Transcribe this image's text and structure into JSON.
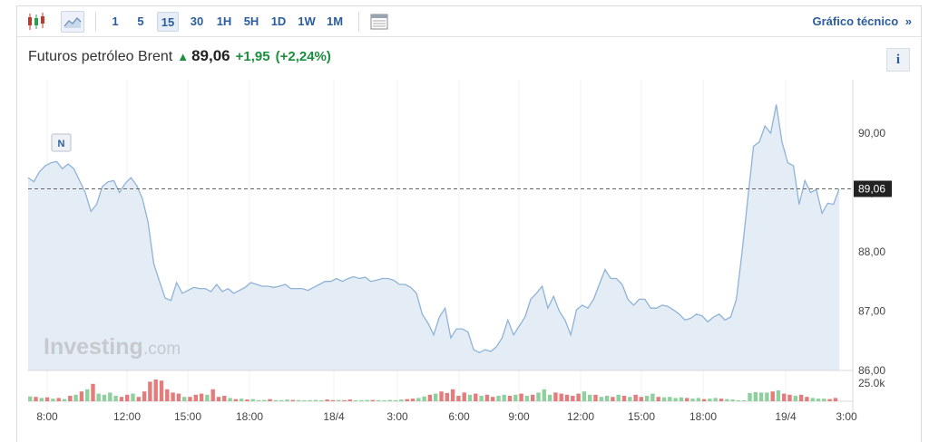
{
  "toolbar": {
    "intervals": [
      "1",
      "5",
      "15",
      "30",
      "1H",
      "5H",
      "1D",
      "1W",
      "1M"
    ],
    "active_interval": "15",
    "icons": [
      "candlestick-icon",
      "area-chart-icon",
      "table-icon"
    ],
    "technical_chart_label": "Gráfico técnico",
    "technical_chart_arrow": "»"
  },
  "header": {
    "instrument": "Futuros petróleo Brent",
    "price": "89,06",
    "change": "+1,95",
    "change_pct": "(+2,24%)",
    "info_label": "i",
    "colors": {
      "up": "#1a8f3c"
    }
  },
  "watermark": {
    "brand": "Investing",
    "suffix": ".com"
  },
  "chart_data": {
    "type": "area",
    "y_range": [
      86.0,
      90.9
    ],
    "y_ticks": [
      "90,00",
      "89,00",
      "88,00",
      "87,00",
      "86,00"
    ],
    "y_tick_values": [
      90.0,
      89.0,
      88.0,
      87.0,
      86.0
    ],
    "last_price": 89.06,
    "last_price_label": "89,06",
    "news_marker": "N",
    "x_labels": [
      "8:00",
      "12:00",
      "15:00",
      "18:00",
      "18/4",
      "3:00",
      "6:00",
      "9:00",
      "12:00",
      "15:00",
      "18:00",
      "19/4",
      "3:00"
    ],
    "volume_max_label": "25.0k",
    "colors": {
      "line": "#8fb3d6",
      "fill": "#e4edf6",
      "vol_up": "#8fd19e",
      "vol_down": "#e37c7c",
      "last_price_bg": "#222222"
    },
    "price_series": [
      89.25,
      89.18,
      89.35,
      89.45,
      89.5,
      89.52,
      89.4,
      89.48,
      89.4,
      89.2,
      89.0,
      88.68,
      88.8,
      89.1,
      89.18,
      89.2,
      89.0,
      89.15,
      89.25,
      89.12,
      88.9,
      88.5,
      87.8,
      87.5,
      87.22,
      87.18,
      87.48,
      87.3,
      87.35,
      87.4,
      87.38,
      87.38,
      87.33,
      87.45,
      87.33,
      87.38,
      87.3,
      87.35,
      87.4,
      87.48,
      87.45,
      87.42,
      87.42,
      87.4,
      87.42,
      87.45,
      87.38,
      87.38,
      87.38,
      87.35,
      87.4,
      87.45,
      87.5,
      87.5,
      87.55,
      87.5,
      87.55,
      87.58,
      87.55,
      87.57,
      87.5,
      87.52,
      87.55,
      87.55,
      87.52,
      87.45,
      87.45,
      87.4,
      87.3,
      86.95,
      86.8,
      86.6,
      86.9,
      87.05,
      86.55,
      86.7,
      86.7,
      86.65,
      86.35,
      86.3,
      86.35,
      86.32,
      86.4,
      86.55,
      86.85,
      86.6,
      86.75,
      86.9,
      87.2,
      87.3,
      87.42,
      87.05,
      87.25,
      87.0,
      86.85,
      86.6,
      87.02,
      87.1,
      87.05,
      87.2,
      87.45,
      87.7,
      87.55,
      87.55,
      87.45,
      87.2,
      87.1,
      87.2,
      87.2,
      87.05,
      87.05,
      87.1,
      87.08,
      87.02,
      86.95,
      86.85,
      86.88,
      86.95,
      86.92,
      86.82,
      86.9,
      86.95,
      86.85,
      86.9,
      87.2,
      88.0,
      88.9,
      89.78,
      89.85,
      90.12,
      90.0,
      90.48,
      89.85,
      89.5,
      89.45,
      88.8,
      89.2,
      89.0,
      89.05,
      88.65,
      88.82,
      88.8,
      89.06
    ],
    "volume_series": [
      0.22,
      -0.2,
      0.15,
      -0.18,
      0.12,
      -0.15,
      0.1,
      -0.25,
      0.3,
      -0.45,
      0.55,
      -0.8,
      0.35,
      0.3,
      0.4,
      0.25,
      -0.2,
      -0.3,
      0.35,
      -0.2,
      -0.45,
      -0.9,
      -1.0,
      -0.95,
      -0.55,
      -0.4,
      -0.35,
      0.2,
      -0.2,
      -0.3,
      -0.35,
      0.3,
      -0.55,
      -0.2,
      -0.25,
      0.15,
      -0.1,
      0.12,
      -0.08,
      0.1,
      0.05,
      0.06,
      -0.1,
      0.05,
      0.05,
      0.08,
      -0.06,
      0.05,
      0.04,
      0.05,
      0.06,
      0.04,
      -0.08,
      -0.05,
      0.06,
      -0.05,
      -0.08,
      0.04,
      0.05,
      0.06,
      -0.06,
      0.05,
      0.04,
      0.06,
      0.05,
      0.08,
      -0.1,
      -0.12,
      0.15,
      0.22,
      -0.3,
      0.35,
      -0.45,
      -0.38,
      -0.55,
      -0.25,
      -0.4,
      0.3,
      -0.35,
      0.25,
      -0.3,
      -0.2,
      0.25,
      0.3,
      -0.25,
      0.3,
      -0.35,
      0.25,
      -0.3,
      0.4,
      0.55,
      0.3,
      -0.4,
      -0.35,
      -0.3,
      -0.25,
      -0.35,
      0.45,
      0.3,
      -0.3,
      0.2,
      0.25,
      -0.2,
      0.3,
      -0.25,
      0.2,
      -0.3,
      -0.2,
      0.25,
      0.35,
      -0.2,
      0.18,
      0.2,
      0.15,
      0.18,
      -0.15,
      0.12,
      0.15,
      -0.1,
      0.12,
      0.15,
      -0.12,
      0.1,
      0.08,
      0.0,
      0.0,
      0.38,
      0.42,
      0.4,
      0.4,
      -0.45,
      0.5,
      -0.35,
      -0.3,
      0.25,
      -0.3,
      -0.2,
      0.15,
      0.12,
      0.12,
      -0.1,
      -0.15
    ]
  }
}
